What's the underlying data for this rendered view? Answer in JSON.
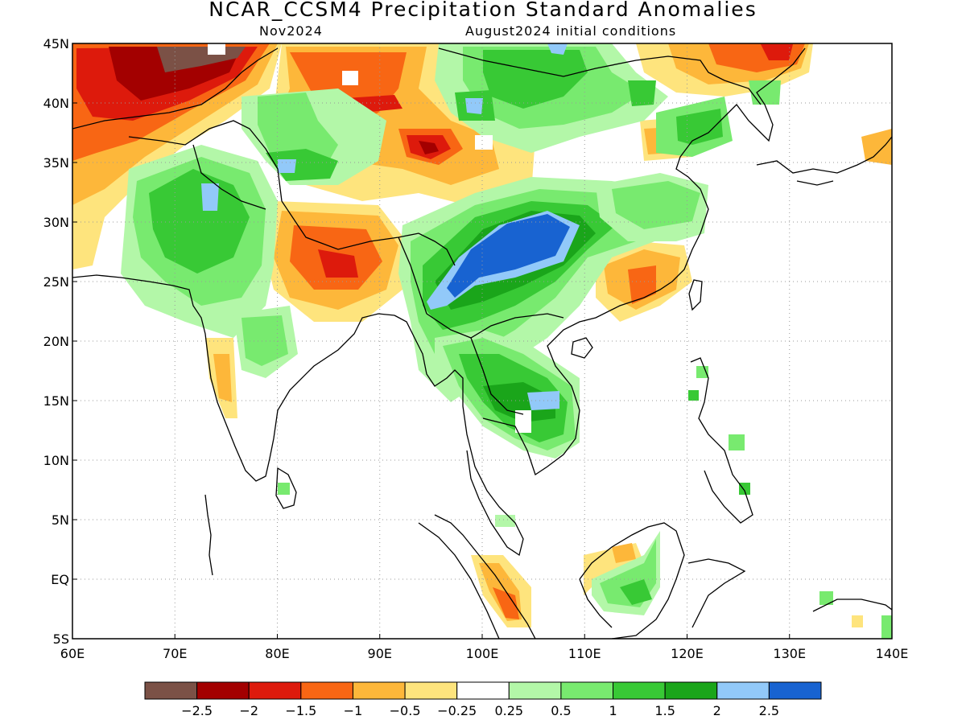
{
  "title": "NCAR_CCSM4 Precipitation Standard Anomalies",
  "subtitle_left": "Nov2024",
  "subtitle_right": "August2024 initial conditions",
  "map": {
    "lon_range": [
      60,
      140
    ],
    "lat_range": [
      -5,
      45
    ],
    "lon_ticks": [
      {
        "value": 60,
        "label": "60E"
      },
      {
        "value": 70,
        "label": "70E"
      },
      {
        "value": 80,
        "label": "80E"
      },
      {
        "value": 90,
        "label": "90E"
      },
      {
        "value": 100,
        "label": "100E"
      },
      {
        "value": 110,
        "label": "110E"
      },
      {
        "value": 120,
        "label": "120E"
      },
      {
        "value": 130,
        "label": "130E"
      },
      {
        "value": 140,
        "label": "140E"
      }
    ],
    "lat_ticks": [
      {
        "value": 45,
        "label": "45N"
      },
      {
        "value": 40,
        "label": "40N"
      },
      {
        "value": 35,
        "label": "35N"
      },
      {
        "value": 30,
        "label": "30N"
      },
      {
        "value": 25,
        "label": "25N"
      },
      {
        "value": 20,
        "label": "20N"
      },
      {
        "value": 15,
        "label": "15N"
      },
      {
        "value": 10,
        "label": "10N"
      },
      {
        "value": 5,
        "label": "5N"
      },
      {
        "value": 0,
        "label": "EQ"
      },
      {
        "value": -5,
        "label": "5S"
      }
    ]
  },
  "colorbar": {
    "colors": [
      "#7b5146",
      "#a30000",
      "#dd1a0c",
      "#f86614",
      "#fdb73a",
      "#fee47d",
      "#ffffff",
      "#b3f7a8",
      "#78ea6f",
      "#38c935",
      "#1aa51a",
      "#92c9f9",
      "#1863d1"
    ],
    "labels": [
      "−2.5",
      "−2",
      "−1.5",
      "−1",
      "−0.5",
      "−0.25",
      "0.25",
      "0.5",
      "1",
      "1.5",
      "2",
      "2.5"
    ]
  }
}
